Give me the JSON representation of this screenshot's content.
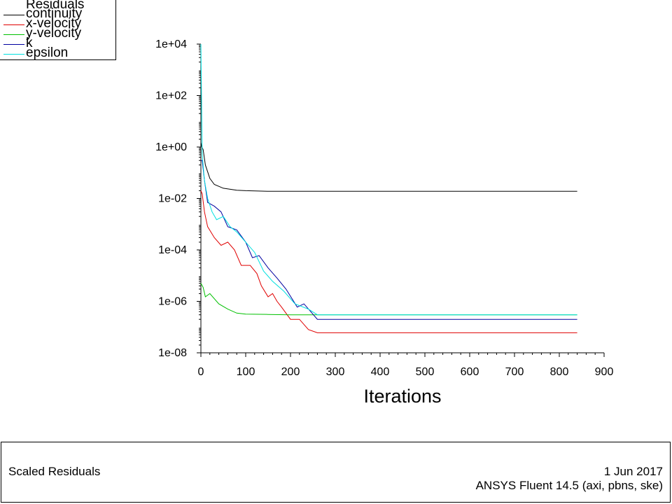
{
  "chart_data": {
    "type": "line",
    "title": "Scaled Residuals",
    "xlabel": "Iterations",
    "ylabel": "",
    "xlim": [
      0,
      900
    ],
    "ylim": [
      1e-08,
      10000.0
    ],
    "y_scale": "log",
    "x_ticks": [
      "0",
      "100",
      "200",
      "300",
      "400",
      "500",
      "600",
      "700",
      "800",
      "900"
    ],
    "y_ticks": [
      "1e+04",
      "1e+02",
      "1e+00",
      "1e-02",
      "1e-04",
      "1e-06",
      "1e-08"
    ],
    "legend_title": "Residuals",
    "legend_position": "top-left",
    "series": [
      {
        "name": "continuity",
        "color": "#000000",
        "x": [
          0,
          2,
          5,
          10,
          20,
          30,
          50,
          80,
          100,
          150,
          200,
          300,
          400,
          500,
          600,
          700,
          800,
          840
        ],
        "y": [
          1.5,
          1.0,
          0.8,
          0.2,
          0.06,
          0.035,
          0.025,
          0.021,
          0.02,
          0.019,
          0.019,
          0.019,
          0.019,
          0.019,
          0.019,
          0.019,
          0.019,
          0.019
        ]
      },
      {
        "name": "x-velocity",
        "color": "#e00000",
        "x": [
          0,
          3,
          8,
          15,
          30,
          45,
          60,
          75,
          90,
          110,
          125,
          135,
          150,
          160,
          170,
          180,
          200,
          220,
          240,
          260,
          300,
          400,
          500,
          600,
          700,
          800,
          840
        ],
        "y": [
          0.02,
          0.015,
          0.003,
          0.0008,
          0.0003,
          0.00015,
          0.0002,
          0.0001,
          2.5e-05,
          2.5e-05,
          1.2e-05,
          4e-06,
          1.5e-06,
          2e-06,
          1e-06,
          6e-07,
          2e-07,
          2e-07,
          8e-08,
          6e-08,
          6e-08,
          6e-08,
          6e-08,
          6e-08,
          6e-08,
          6e-08,
          6e-08
        ]
      },
      {
        "name": "y-velocity",
        "color": "#00c000",
        "x": [
          0,
          5,
          10,
          20,
          40,
          60,
          80,
          100,
          150,
          200,
          300,
          400,
          500,
          600,
          700,
          800,
          840
        ],
        "y": [
          5e-06,
          3.5e-06,
          1.5e-06,
          2e-06,
          8e-07,
          5e-07,
          3.5e-07,
          3.2e-07,
          3.1e-07,
          3e-07,
          3e-07,
          3e-07,
          3e-07,
          3e-07,
          3e-07,
          3e-07,
          3e-07
        ]
      },
      {
        "name": "k",
        "color": "#0000a0",
        "x": [
          0,
          3,
          8,
          15,
          30,
          45,
          60,
          80,
          100,
          115,
          130,
          150,
          170,
          190,
          215,
          230,
          245,
          260,
          300,
          400,
          500,
          600,
          700,
          800,
          840
        ],
        "y": [
          0.3,
          0.3,
          0.05,
          0.007,
          0.005,
          0.003,
          0.0008,
          0.0006,
          0.0002,
          5e-05,
          6e-05,
          2e-05,
          8e-06,
          3e-06,
          6e-07,
          8e-07,
          4e-07,
          2e-07,
          2e-07,
          2e-07,
          2e-07,
          2e-07,
          2e-07,
          2e-07,
          2e-07
        ]
      },
      {
        "name": "epsilon",
        "color": "#00e0e0",
        "x": [
          0,
          3,
          8,
          15,
          25,
          35,
          50,
          65,
          80,
          100,
          120,
          140,
          160,
          185,
          210,
          240,
          260,
          300,
          400,
          500,
          600,
          700,
          800,
          840
        ],
        "y": [
          10000,
          0.5,
          0.05,
          0.01,
          0.003,
          0.0015,
          0.002,
          0.0008,
          0.0005,
          0.0002,
          8e-05,
          1.5e-05,
          6e-06,
          2.5e-06,
          8e-07,
          5e-07,
          3e-07,
          3e-07,
          3e-07,
          3e-07,
          3e-07,
          3e-07,
          3e-07,
          3e-07
        ]
      }
    ]
  },
  "footer": {
    "title": "Scaled Residuals",
    "date": "1 Jun 2017",
    "product": "ANSYS Fluent 14.5 (axi, pbns, ske)"
  }
}
